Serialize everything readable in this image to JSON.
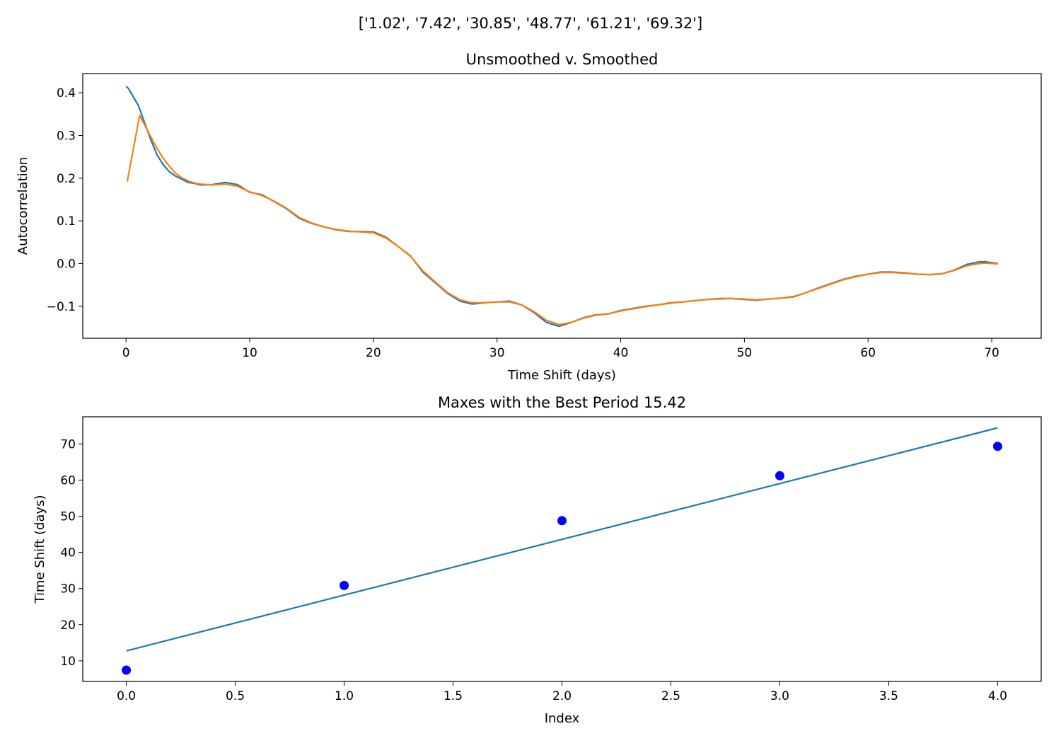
{
  "figure": {
    "suptitle": "['1.02', '7.42', '30.85', '48.77', '61.21', '69.32']"
  },
  "chart_data": [
    {
      "type": "line",
      "title": "Unsmoothed v. Smoothed",
      "xlabel": "Time Shift (days)",
      "ylabel": "Autocorrelation",
      "xlim": [
        -3.5,
        74.0
      ],
      "ylim": [
        -0.175,
        0.445
      ],
      "xticks": [
        0,
        10,
        20,
        30,
        40,
        50,
        60,
        70
      ],
      "xtick_labels": [
        "0",
        "10",
        "20",
        "30",
        "40",
        "50",
        "60",
        "70"
      ],
      "yticks": [
        0.4,
        0.3,
        0.2,
        0.1,
        0.0,
        -0.1
      ],
      "ytick_labels": [
        "0.4",
        "0.3",
        "0.2",
        "0.1",
        "0.0",
        "−0.1"
      ],
      "grid": false,
      "colors": {
        "unsmoothed": "#1f77b4",
        "smoothed": "#ff7f0e"
      },
      "series": [
        {
          "x": [
            0,
            0.2,
            0.5,
            1,
            1.5,
            2,
            2.5,
            3,
            3.5,
            4,
            4.5,
            5,
            5.5,
            6,
            7,
            8,
            9,
            10,
            11,
            12,
            13,
            14,
            15,
            16,
            17,
            18,
            19,
            20,
            21,
            22,
            23,
            24,
            25,
            26,
            27,
            28,
            29,
            30,
            31,
            32,
            33,
            34,
            35,
            36,
            37,
            38,
            39,
            40,
            41,
            42,
            43,
            44,
            45,
            46,
            47,
            48,
            49,
            50,
            51,
            52,
            53,
            54,
            55,
            56,
            57,
            58,
            59,
            60,
            61,
            62,
            63,
            64,
            65,
            66,
            67,
            68,
            69,
            69.5,
            70,
            70.5
          ],
          "values": [
            0.415,
            0.41,
            0.395,
            0.37,
            0.33,
            0.29,
            0.255,
            0.232,
            0.215,
            0.205,
            0.198,
            0.19,
            0.188,
            0.184,
            0.185,
            0.19,
            0.185,
            0.167,
            0.161,
            0.145,
            0.128,
            0.106,
            0.094,
            0.086,
            0.079,
            0.075,
            0.075,
            0.074,
            0.062,
            0.04,
            0.018,
            -0.02,
            -0.045,
            -0.07,
            -0.088,
            -0.095,
            -0.092,
            -0.09,
            -0.088,
            -0.097,
            -0.115,
            -0.138,
            -0.147,
            -0.138,
            -0.127,
            -0.12,
            -0.118,
            -0.11,
            -0.105,
            -0.1,
            -0.097,
            -0.092,
            -0.09,
            -0.087,
            -0.084,
            -0.082,
            -0.082,
            -0.084,
            -0.086,
            -0.083,
            -0.081,
            -0.078,
            -0.068,
            -0.057,
            -0.047,
            -0.037,
            -0.03,
            -0.025,
            -0.02,
            -0.02,
            -0.022,
            -0.025,
            -0.026,
            -0.024,
            -0.015,
            -0.002,
            0.004,
            0.004,
            0.002,
            0.0
          ]
        },
        {
          "x": [
            0.1,
            1.1,
            1.5,
            2,
            2.5,
            3,
            3.5,
            4,
            4.5,
            5,
            5.5,
            6,
            7,
            8,
            9,
            10,
            11,
            12,
            13,
            14,
            15,
            16,
            17,
            18,
            19,
            20,
            21,
            22,
            23,
            24,
            25,
            26,
            27,
            28,
            29,
            30,
            31,
            32,
            33,
            34,
            35,
            36,
            37,
            38,
            39,
            40,
            41,
            42,
            43,
            44,
            45,
            46,
            47,
            48,
            49,
            50,
            51,
            52,
            53,
            54,
            55,
            56,
            57,
            58,
            59,
            60,
            61,
            62,
            63,
            64,
            65,
            66,
            67,
            68,
            69,
            69.5,
            70,
            70.5
          ],
          "values": [
            0.192,
            0.347,
            0.325,
            0.297,
            0.27,
            0.247,
            0.228,
            0.212,
            0.201,
            0.194,
            0.189,
            0.186,
            0.184,
            0.186,
            0.181,
            0.168,
            0.159,
            0.146,
            0.129,
            0.108,
            0.095,
            0.086,
            0.08,
            0.076,
            0.074,
            0.072,
            0.06,
            0.04,
            0.017,
            -0.017,
            -0.043,
            -0.068,
            -0.085,
            -0.092,
            -0.092,
            -0.09,
            -0.09,
            -0.097,
            -0.113,
            -0.133,
            -0.143,
            -0.138,
            -0.128,
            -0.121,
            -0.118,
            -0.111,
            -0.106,
            -0.101,
            -0.097,
            -0.093,
            -0.09,
            -0.087,
            -0.084,
            -0.083,
            -0.082,
            -0.083,
            -0.085,
            -0.083,
            -0.081,
            -0.077,
            -0.068,
            -0.058,
            -0.048,
            -0.038,
            -0.031,
            -0.025,
            -0.021,
            -0.021,
            -0.023,
            -0.025,
            -0.026,
            -0.024,
            -0.016,
            -0.005,
            0.0,
            0.001,
            0.0,
            -0.001
          ]
        }
      ]
    },
    {
      "type": "scatter",
      "title": "Maxes with the Best Period 15.42",
      "xlabel": "Index",
      "ylabel": "Time Shift (days)",
      "xlim": [
        -0.2,
        4.2
      ],
      "ylim": [
        4.3,
        77.5
      ],
      "xticks": [
        0.0,
        0.5,
        1.0,
        1.5,
        2.0,
        2.5,
        3.0,
        3.5,
        4.0
      ],
      "xtick_labels": [
        "0.0",
        "0.5",
        "1.0",
        "1.5",
        "2.0",
        "2.5",
        "3.0",
        "3.5",
        "4.0"
      ],
      "yticks": [
        70,
        60,
        50,
        40,
        30,
        20,
        10
      ],
      "ytick_labels": [
        "70",
        "60",
        "50",
        "40",
        "30",
        "20",
        "10"
      ],
      "grid": false,
      "colors": {
        "points": "#0000ff",
        "fit": "#1f77b4"
      },
      "points": {
        "x": [
          0,
          1,
          2,
          3,
          4
        ],
        "values": [
          7.42,
          30.85,
          48.77,
          61.21,
          69.32
        ]
      },
      "fit_line": {
        "x": [
          0,
          4
        ],
        "values": [
          12.76,
          74.44
        ]
      }
    }
  ]
}
